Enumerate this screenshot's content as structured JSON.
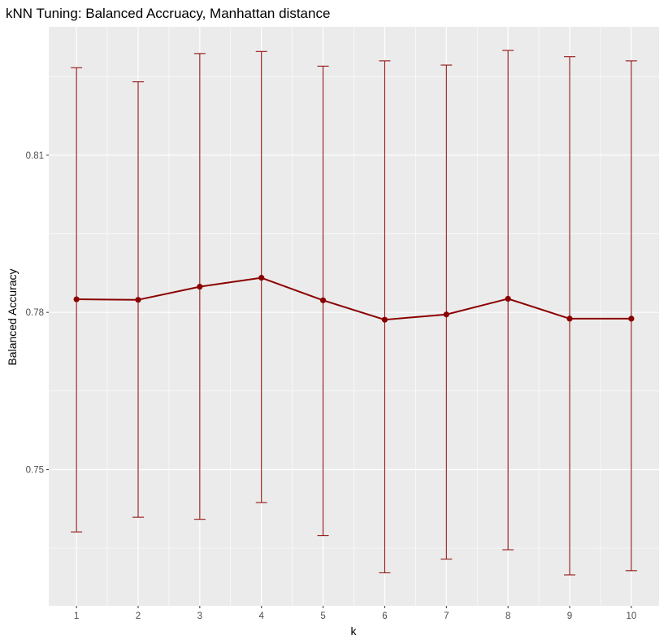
{
  "chart_data": {
    "type": "line",
    "title": "kNN Tuning: Balanced Accruacy, Manhattan distance",
    "xlabel": "k",
    "ylabel": "Balanced Accuracy",
    "x": [
      1,
      2,
      3,
      4,
      5,
      6,
      7,
      8,
      9,
      10
    ],
    "x_tick_labels": [
      "1",
      "2",
      "3",
      "4",
      "5",
      "6",
      "7",
      "8",
      "9",
      "10"
    ],
    "y_ticks": [
      0.75,
      0.78,
      0.81
    ],
    "y_tick_labels": [
      "0.75",
      "0.78",
      "0.81"
    ],
    "xlim": [
      0.55,
      10.45
    ],
    "ylim": [
      0.724,
      0.8345
    ],
    "series": [
      {
        "values": [
          0.7825,
          0.7824,
          0.7849,
          0.7866,
          0.7823,
          0.7786,
          0.7796,
          0.7826,
          0.7788,
          0.7788
        ],
        "error_low": [
          0.7381,
          0.7409,
          0.7405,
          0.7437,
          0.7374,
          0.7303,
          0.7329,
          0.7347,
          0.7299,
          0.7307
        ],
        "error_high": [
          0.8267,
          0.824,
          0.8294,
          0.8298,
          0.827,
          0.828,
          0.8272,
          0.83,
          0.8288,
          0.828
        ]
      }
    ],
    "grid": true,
    "legend": "none",
    "colors": {
      "series": "#8b0000",
      "panel_background": "#ebebeb",
      "grid": "#ffffff",
      "tick_label": "#4d4d4d"
    }
  }
}
